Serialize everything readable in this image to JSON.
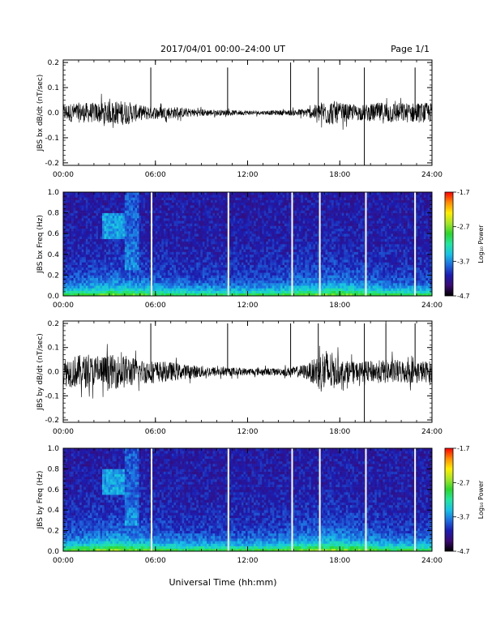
{
  "header": {
    "title": "2017/04/01   00:00–24:00 UT",
    "page": "Page 1/1"
  },
  "footer": {
    "xlabel": "Universal Time (hh:mm)"
  },
  "colors": {
    "trace": "#000000",
    "colormap": [
      "#000000",
      "#3a0a73",
      "#1c1cb0",
      "#1d6de0",
      "#17c2e6",
      "#22e6a0",
      "#2cd62c",
      "#a6e626",
      "#ffee00",
      "#ff8c00",
      "#ff0000"
    ]
  },
  "chart_data": [
    {
      "type": "line",
      "panel": "bx-waveform",
      "ylabel": "JBS bx dB/dt (nT/sec)",
      "ylim": [
        -0.21,
        0.21
      ],
      "yticks": [
        "0.2",
        "0.1",
        "0.0",
        "-0.1",
        "-0.2"
      ],
      "xticks": [
        "00:00",
        "06:00",
        "12:00",
        "18:00",
        "24:00"
      ],
      "xlim_hours": [
        0,
        24
      ],
      "envelope_hours": [
        0,
        1,
        2,
        3,
        4,
        5,
        5.5,
        6,
        7,
        8,
        9,
        10,
        11,
        12,
        13,
        14,
        15,
        16,
        16.5,
        17,
        17.5,
        18,
        19,
        20,
        21,
        22,
        23,
        24
      ],
      "envelope_amp": [
        0.035,
        0.04,
        0.04,
        0.045,
        0.05,
        0.03,
        0.03,
        0.025,
        0.025,
        0.018,
        0.015,
        0.012,
        0.01,
        0.01,
        0.008,
        0.01,
        0.012,
        0.02,
        0.035,
        0.05,
        0.05,
        0.04,
        0.03,
        0.035,
        0.045,
        0.04,
        0.04,
        0.04
      ],
      "spike_hours": [
        5.7,
        10.7,
        14.8,
        16.6,
        19.6,
        22.9
      ],
      "spike_top": [
        0.18,
        0.18,
        0.2,
        0.18,
        0.18,
        0.18
      ],
      "spike_bottom": [
        0.0,
        0.0,
        0.0,
        0.0,
        -0.21,
        0.0
      ]
    },
    {
      "type": "heatmap",
      "panel": "bx-spectrogram",
      "ylabel": "JBS bx Freq (Hz)",
      "ylim": [
        0,
        1.0
      ],
      "yticks": [
        "1.0",
        "0.8",
        "0.6",
        "0.4",
        "0.2",
        "0.0"
      ],
      "xticks": [
        "00:00",
        "06:00",
        "12:00",
        "18:00",
        "24:00"
      ],
      "colorbar_label": "Log₁₀ Power",
      "colorbar_ticks": [
        "-1.7",
        "-2.7",
        "-3.7",
        "-4.7"
      ],
      "power_range": [
        -4.7,
        -1.7
      ],
      "gap_hours": [
        5.75,
        10.75,
        14.9,
        16.7,
        19.7,
        22.9
      ]
    },
    {
      "type": "line",
      "panel": "by-waveform",
      "ylabel": "JBS by dB/dt (nT/sec)",
      "ylim": [
        -0.21,
        0.21
      ],
      "yticks": [
        "0.2",
        "0.1",
        "0.0",
        "-0.1",
        "-0.2"
      ],
      "xticks": [
        "00:00",
        "06:00",
        "12:00",
        "18:00",
        "24:00"
      ],
      "xlim_hours": [
        0,
        24
      ],
      "envelope_hours": [
        0,
        1,
        2,
        3,
        4,
        5,
        5.5,
        6,
        7,
        8,
        9,
        10,
        11,
        12,
        13,
        14,
        15,
        16,
        16.5,
        17,
        17.5,
        18,
        19,
        20,
        21,
        22,
        23,
        24
      ],
      "envelope_amp": [
        0.06,
        0.07,
        0.065,
        0.07,
        0.07,
        0.05,
        0.05,
        0.045,
        0.04,
        0.03,
        0.025,
        0.02,
        0.018,
        0.015,
        0.015,
        0.015,
        0.02,
        0.035,
        0.07,
        0.1,
        0.08,
        0.05,
        0.04,
        0.045,
        0.05,
        0.05,
        0.045,
        0.045
      ],
      "spike_hours": [
        5.7,
        10.7,
        14.8,
        16.6,
        19.6,
        21.0,
        22.9
      ],
      "spike_top": [
        0.2,
        0.2,
        0.2,
        0.2,
        0.2,
        0.2,
        0.2
      ],
      "spike_bottom": [
        0.0,
        0.0,
        0.0,
        0.0,
        -0.21,
        0.0,
        0.0
      ]
    },
    {
      "type": "heatmap",
      "panel": "by-spectrogram",
      "ylabel": "JBS by Freq (Hz)",
      "ylim": [
        0,
        1.0
      ],
      "yticks": [
        "1.0",
        "0.8",
        "0.6",
        "0.4",
        "0.2",
        "0.0"
      ],
      "xticks": [
        "00:00",
        "06:00",
        "12:00",
        "18:00",
        "24:00"
      ],
      "colorbar_label": "Log₁₀ Power",
      "colorbar_ticks": [
        "-1.7",
        "-2.7",
        "-3.7",
        "-4.7"
      ],
      "power_range": [
        -4.7,
        -1.7
      ],
      "gap_hours": [
        5.75,
        10.75,
        14.9,
        16.7,
        19.7,
        22.9
      ]
    }
  ]
}
